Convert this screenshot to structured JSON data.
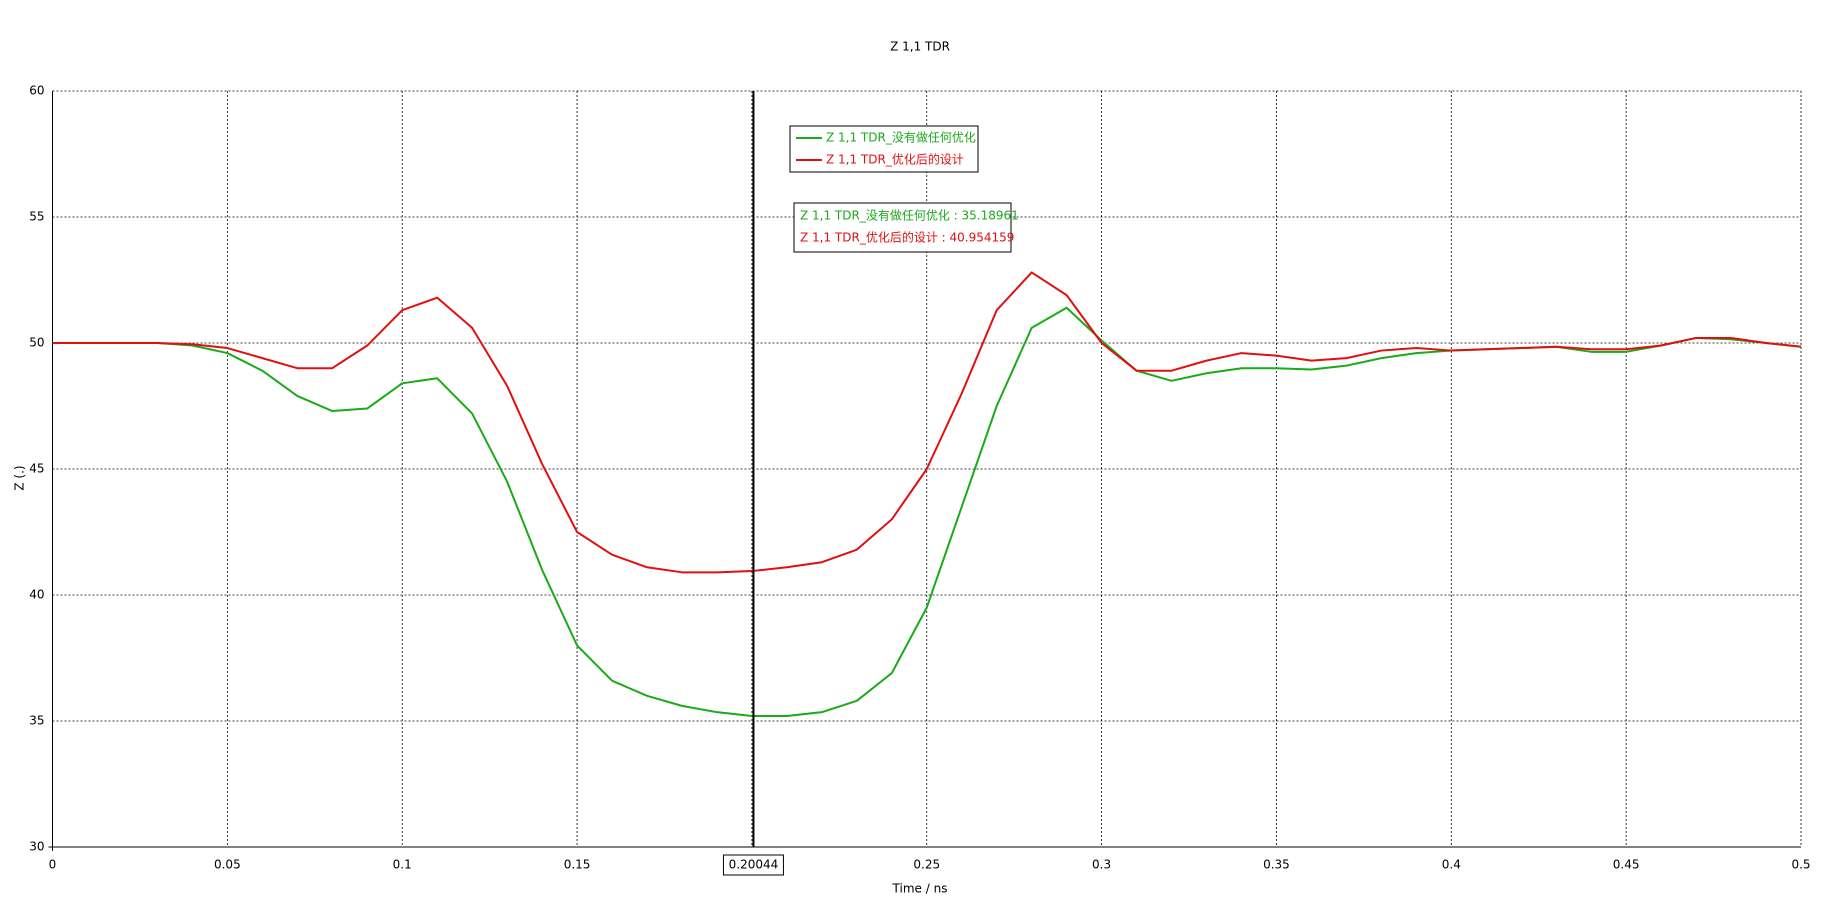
{
  "chart_data": {
    "type": "line",
    "title": "Z 1,1 TDR",
    "x_label": "Time / ns",
    "y_label": "Z (.)",
    "x": [
      0,
      0.01,
      0.02,
      0.03,
      0.04,
      0.05,
      0.06,
      0.07,
      0.08,
      0.09,
      0.1,
      0.11,
      0.12,
      0.13,
      0.14,
      0.15,
      0.16,
      0.17,
      0.18,
      0.19,
      0.2,
      0.21,
      0.22,
      0.23,
      0.24,
      0.25,
      0.26,
      0.27,
      0.28,
      0.29,
      0.3,
      0.31,
      0.32,
      0.33,
      0.34,
      0.35,
      0.36,
      0.37,
      0.38,
      0.39,
      0.4,
      0.41,
      0.42,
      0.43,
      0.44,
      0.45,
      0.46,
      0.47,
      0.48,
      0.49,
      0.5
    ],
    "series": [
      {
        "name": "Z 1,1 TDR_没有做任何优化",
        "color": "#1aaa1a",
        "values": [
          50,
          50,
          50,
          50,
          49.9,
          49.6,
          48.9,
          47.9,
          47.3,
          47.4,
          48.4,
          48.6,
          47.2,
          44.5,
          41.0,
          38.0,
          36.6,
          36.0,
          35.6,
          35.35,
          35.2,
          35.2,
          35.35,
          35.8,
          36.9,
          39.5,
          43.5,
          47.5,
          50.6,
          51.4,
          50.1,
          48.9,
          48.5,
          48.8,
          49.0,
          49.0,
          48.95,
          49.1,
          49.4,
          49.6,
          49.7,
          49.75,
          49.8,
          49.85,
          49.65,
          49.65,
          49.9,
          50.2,
          50.15,
          50.0,
          49.85
        ]
      },
      {
        "name": "Z 1,1 TDR_优化后的设计",
        "color": "#e01010",
        "values": [
          50,
          50,
          50,
          50,
          49.95,
          49.8,
          49.4,
          49.0,
          49.0,
          49.9,
          51.3,
          51.8,
          50.6,
          48.3,
          45.2,
          42.5,
          41.6,
          41.1,
          40.9,
          40.9,
          40.95,
          41.1,
          41.3,
          41.8,
          43.0,
          45.0,
          48.0,
          51.3,
          52.8,
          51.9,
          50.0,
          48.9,
          48.9,
          49.3,
          49.6,
          49.5,
          49.3,
          49.4,
          49.7,
          49.8,
          49.7,
          49.75,
          49.8,
          49.85,
          49.75,
          49.75,
          49.9,
          50.2,
          50.2,
          50.0,
          49.85
        ]
      }
    ],
    "xlim": [
      0,
      0.5
    ],
    "ylim": [
      30,
      60
    ],
    "xticks": [
      0,
      0.05,
      0.1,
      0.15,
      0.2,
      0.25,
      0.3,
      0.35,
      0.4,
      0.45,
      0.5
    ],
    "yticks": [
      30,
      35,
      40,
      45,
      50,
      55,
      60
    ],
    "grid": true,
    "cursor": {
      "x": 0.20044,
      "label": "0.20044",
      "readouts": [
        "Z 1,1 TDR_没有做任何优化 : 35.18961",
        "Z 1,1 TDR_优化后的设计 : 40.954159"
      ]
    }
  }
}
